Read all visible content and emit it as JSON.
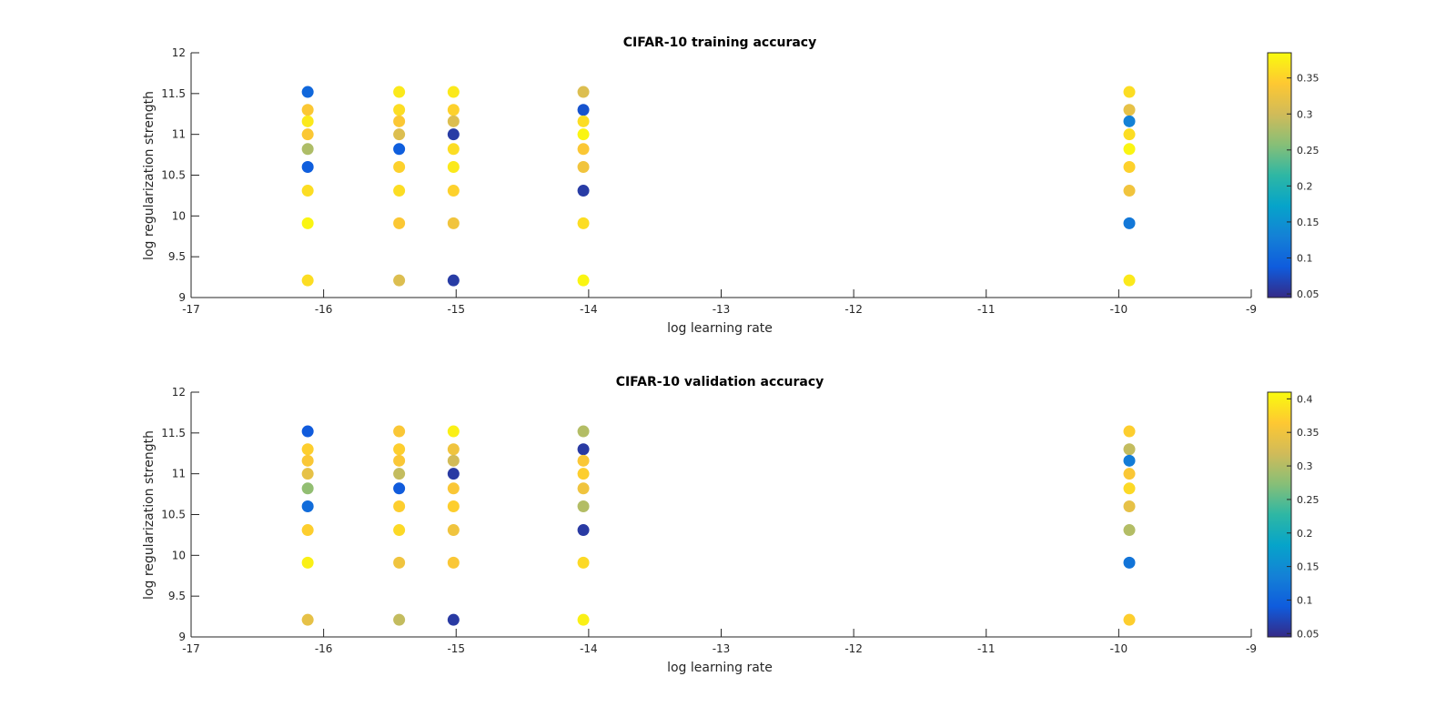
{
  "chart_data": [
    {
      "type": "scatter",
      "title": "CIFAR-10 training accuracy",
      "xlabel": "log learning rate",
      "ylabel": "log regularization strength",
      "xlim": [
        -17,
        -9
      ],
      "ylim": [
        9,
        12
      ],
      "xticks": [
        "-17",
        "-16",
        "-15",
        "-14",
        "-13",
        "-12",
        "-11",
        "-10",
        "-9"
      ],
      "yticks": [
        "9",
        "9.5",
        "10",
        "10.5",
        "11",
        "11.5",
        "12"
      ],
      "colorbar": {
        "range": [
          0.045,
          0.385
        ],
        "ticks": [
          "0.05",
          "0.1",
          "0.15",
          "0.2",
          "0.25",
          "0.3",
          "0.35"
        ],
        "colormap": "parula"
      },
      "points": [
        {
          "x": -16.12,
          "y": 11.52,
          "c": 0.1
        },
        {
          "x": -16.12,
          "y": 11.3,
          "c": 0.34
        },
        {
          "x": -16.12,
          "y": 11.16,
          "c": 0.37
        },
        {
          "x": -16.12,
          "y": 11.0,
          "c": 0.34
        },
        {
          "x": -16.12,
          "y": 10.82,
          "c": 0.28
        },
        {
          "x": -16.12,
          "y": 10.6,
          "c": 0.09
        },
        {
          "x": -16.12,
          "y": 10.31,
          "c": 0.36
        },
        {
          "x": -16.12,
          "y": 9.91,
          "c": 0.38
        },
        {
          "x": -16.12,
          "y": 9.21,
          "c": 0.36
        },
        {
          "x": -15.43,
          "y": 11.52,
          "c": 0.37
        },
        {
          "x": -15.43,
          "y": 11.3,
          "c": 0.36
        },
        {
          "x": -15.43,
          "y": 11.16,
          "c": 0.34
        },
        {
          "x": -15.43,
          "y": 11.0,
          "c": 0.31
        },
        {
          "x": -15.43,
          "y": 10.82,
          "c": 0.09
        },
        {
          "x": -15.43,
          "y": 10.6,
          "c": 0.35
        },
        {
          "x": -15.43,
          "y": 10.31,
          "c": 0.36
        },
        {
          "x": -15.43,
          "y": 9.91,
          "c": 0.34
        },
        {
          "x": -15.43,
          "y": 9.21,
          "c": 0.31
        },
        {
          "x": -15.02,
          "y": 11.52,
          "c": 0.37
        },
        {
          "x": -15.02,
          "y": 11.3,
          "c": 0.35
        },
        {
          "x": -15.02,
          "y": 11.16,
          "c": 0.31
        },
        {
          "x": -15.02,
          "y": 11.0,
          "c": 0.06
        },
        {
          "x": -15.02,
          "y": 10.82,
          "c": 0.36
        },
        {
          "x": -15.02,
          "y": 10.6,
          "c": 0.37
        },
        {
          "x": -15.02,
          "y": 10.31,
          "c": 0.35
        },
        {
          "x": -15.02,
          "y": 9.91,
          "c": 0.33
        },
        {
          "x": -15.02,
          "y": 9.21,
          "c": 0.06
        },
        {
          "x": -14.04,
          "y": 11.52,
          "c": 0.31
        },
        {
          "x": -14.04,
          "y": 11.3,
          "c": 0.08
        },
        {
          "x": -14.04,
          "y": 11.16,
          "c": 0.36
        },
        {
          "x": -14.04,
          "y": 11.0,
          "c": 0.38
        },
        {
          "x": -14.04,
          "y": 10.82,
          "c": 0.34
        },
        {
          "x": -14.04,
          "y": 10.6,
          "c": 0.33
        },
        {
          "x": -14.04,
          "y": 10.31,
          "c": 0.06
        },
        {
          "x": -14.04,
          "y": 9.91,
          "c": 0.36
        },
        {
          "x": -14.04,
          "y": 9.21,
          "c": 0.38
        },
        {
          "x": -9.92,
          "y": 11.52,
          "c": 0.36
        },
        {
          "x": -9.92,
          "y": 11.3,
          "c": 0.32
        },
        {
          "x": -9.92,
          "y": 11.16,
          "c": 0.13
        },
        {
          "x": -9.92,
          "y": 11.0,
          "c": 0.36
        },
        {
          "x": -9.92,
          "y": 10.82,
          "c": 0.38
        },
        {
          "x": -9.92,
          "y": 10.6,
          "c": 0.35
        },
        {
          "x": -9.92,
          "y": 10.31,
          "c": 0.33
        },
        {
          "x": -9.92,
          "y": 9.91,
          "c": 0.12
        },
        {
          "x": -9.92,
          "y": 9.21,
          "c": 0.37
        }
      ]
    },
    {
      "type": "scatter",
      "title": "CIFAR-10 validation accuracy",
      "xlabel": "log learning rate",
      "ylabel": "log regularization strength",
      "xlim": [
        -17,
        -9
      ],
      "ylim": [
        9,
        12
      ],
      "xticks": [
        "-17",
        "-16",
        "-15",
        "-14",
        "-13",
        "-12",
        "-11",
        "-10",
        "-9"
      ],
      "yticks": [
        "9",
        "9.5",
        "10",
        "10.5",
        "11",
        "11.5",
        "12"
      ],
      "colorbar": {
        "range": [
          0.045,
          0.41
        ],
        "ticks": [
          "0.05",
          "0.1",
          "0.15",
          "0.2",
          "0.25",
          "0.3",
          "0.35",
          "0.4"
        ],
        "colormap": "parula"
      },
      "points": [
        {
          "x": -16.12,
          "y": 11.52,
          "c": 0.09
        },
        {
          "x": -16.12,
          "y": 11.3,
          "c": 0.37
        },
        {
          "x": -16.12,
          "y": 11.16,
          "c": 0.36
        },
        {
          "x": -16.12,
          "y": 11.0,
          "c": 0.34
        },
        {
          "x": -16.12,
          "y": 10.82,
          "c": 0.28
        },
        {
          "x": -16.12,
          "y": 10.6,
          "c": 0.11
        },
        {
          "x": -16.12,
          "y": 10.31,
          "c": 0.37
        },
        {
          "x": -16.12,
          "y": 9.91,
          "c": 0.4
        },
        {
          "x": -16.12,
          "y": 9.21,
          "c": 0.34
        },
        {
          "x": -15.43,
          "y": 11.52,
          "c": 0.36
        },
        {
          "x": -15.43,
          "y": 11.3,
          "c": 0.37
        },
        {
          "x": -15.43,
          "y": 11.16,
          "c": 0.36
        },
        {
          "x": -15.43,
          "y": 11.0,
          "c": 0.31
        },
        {
          "x": -15.43,
          "y": 10.82,
          "c": 0.09
        },
        {
          "x": -15.43,
          "y": 10.6,
          "c": 0.37
        },
        {
          "x": -15.43,
          "y": 10.31,
          "c": 0.38
        },
        {
          "x": -15.43,
          "y": 9.91,
          "c": 0.35
        },
        {
          "x": -15.43,
          "y": 9.21,
          "c": 0.31
        },
        {
          "x": -15.02,
          "y": 11.52,
          "c": 0.4
        },
        {
          "x": -15.02,
          "y": 11.3,
          "c": 0.35
        },
        {
          "x": -15.02,
          "y": 11.16,
          "c": 0.32
        },
        {
          "x": -15.02,
          "y": 11.0,
          "c": 0.06
        },
        {
          "x": -15.02,
          "y": 10.82,
          "c": 0.36
        },
        {
          "x": -15.02,
          "y": 10.6,
          "c": 0.37
        },
        {
          "x": -15.02,
          "y": 10.31,
          "c": 0.35
        },
        {
          "x": -15.02,
          "y": 9.91,
          "c": 0.36
        },
        {
          "x": -15.02,
          "y": 9.21,
          "c": 0.06
        },
        {
          "x": -14.04,
          "y": 11.52,
          "c": 0.3
        },
        {
          "x": -14.04,
          "y": 11.3,
          "c": 0.06
        },
        {
          "x": -14.04,
          "y": 11.16,
          "c": 0.36
        },
        {
          "x": -14.04,
          "y": 11.0,
          "c": 0.37
        },
        {
          "x": -14.04,
          "y": 10.82,
          "c": 0.35
        },
        {
          "x": -14.04,
          "y": 10.6,
          "c": 0.3
        },
        {
          "x": -14.04,
          "y": 10.31,
          "c": 0.06
        },
        {
          "x": -14.04,
          "y": 9.91,
          "c": 0.38
        },
        {
          "x": -14.04,
          "y": 9.21,
          "c": 0.4
        },
        {
          "x": -9.92,
          "y": 11.52,
          "c": 0.37
        },
        {
          "x": -9.92,
          "y": 11.3,
          "c": 0.31
        },
        {
          "x": -9.92,
          "y": 11.16,
          "c": 0.13
        },
        {
          "x": -9.92,
          "y": 11.0,
          "c": 0.36
        },
        {
          "x": -9.92,
          "y": 10.82,
          "c": 0.38
        },
        {
          "x": -9.92,
          "y": 10.6,
          "c": 0.34
        },
        {
          "x": -9.92,
          "y": 10.31,
          "c": 0.3
        },
        {
          "x": -9.92,
          "y": 9.91,
          "c": 0.12
        },
        {
          "x": -9.92,
          "y": 9.21,
          "c": 0.37
        }
      ]
    }
  ]
}
